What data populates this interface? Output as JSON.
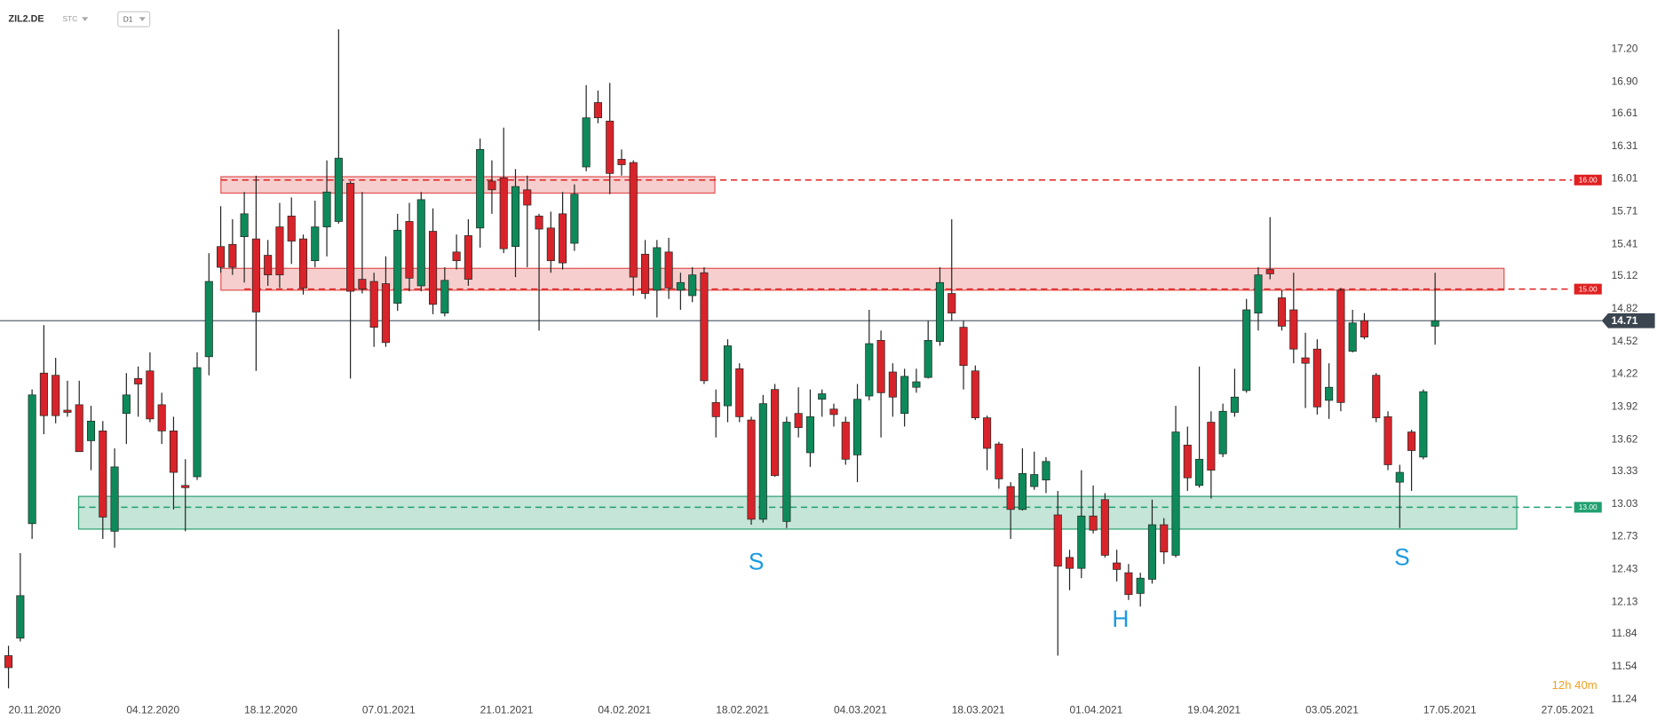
{
  "header": {
    "symbol": "ZIL2.DE",
    "instrument_type": "STC",
    "interval": "D1"
  },
  "chart_data": {
    "type": "candlestick",
    "up_color": "#0e8a5a",
    "down_color": "#d9232a",
    "ylim": [
      11.05,
      17.65
    ],
    "yticks": [
      {
        "value": 17.2,
        "label": "17.20"
      },
      {
        "value": 16.9,
        "label": "16.90"
      },
      16.61,
      16.31,
      16.01,
      15.71,
      15.41,
      15.12,
      14.82,
      14.52,
      14.22,
      13.92,
      13.62,
      13.33,
      13.03,
      12.73,
      12.43,
      12.13,
      11.84,
      11.54,
      11.24
    ],
    "xtick_labels": [
      "20.11.2020",
      "04.12.2020",
      "18.12.2020",
      "07.01.2021",
      "21.01.2021",
      "04.02.2021",
      "18.02.2021",
      "04.03.2021",
      "18.03.2021",
      "01.04.2021",
      "19.04.2021",
      "03.05.2021",
      "17.05.2021",
      "27.05.2021"
    ],
    "open": [
      11.64,
      11.8,
      12.85,
      14.23,
      14.21,
      13.89,
      13.94,
      13.61,
      13.7,
      12.78,
      13.86,
      14.18,
      14.25,
      13.94,
      13.7,
      13.2,
      13.28,
      14.38,
      15.39,
      15.41,
      15.48,
      15.46,
      15.31,
      15.57,
      15.67,
      15.46,
      15.26,
      15.57,
      15.62,
      15.97,
      15.09,
      15.07,
      15.05,
      14.87,
      15.62,
      15.03,
      15.53,
      14.78,
      15.34,
      15.49,
      15.56,
      15.99,
      16.02,
      15.39,
      15.91,
      15.67,
      15.56,
      15.69,
      15.42,
      16.12,
      16.71,
      16.54,
      16.19,
      16.16,
      15.32,
      14.99,
      15.34,
      14.99,
      14.94,
      15.15,
      13.96,
      13.93,
      14.27,
      13.8,
      12.89,
      14.08,
      12.87,
      13.86,
      13.5,
      13.99,
      13.9,
      13.78,
      13.48,
      14.02,
      14.53,
      14.24,
      13.86,
      14.1,
      14.19,
      14.52,
      14.96,
      14.65,
      14.25,
      13.82,
      13.58,
      13.19,
      12.98,
      13.19,
      13.25,
      12.93,
      12.54,
      12.44,
      12.92,
      13.07,
      12.49,
      12.4,
      12.21,
      12.34,
      12.84,
      12.56,
      13.57,
      13.2,
      13.78,
      13.49,
      13.87,
      14.07,
      14.78,
      15.18,
      14.92,
      14.81,
      14.37,
      14.45,
      13.98,
      14.99,
      14.43,
      14.71,
      14.21,
      13.83,
      13.23,
      13.69,
      13.46,
      14.66
    ],
    "high": [
      11.73,
      12.58,
      14.08,
      14.67,
      14.37,
      14.16,
      14.16,
      13.93,
      13.79,
      13.54,
      14.23,
      14.29,
      14.42,
      14.05,
      13.83,
      13.44,
      14.42,
      15.33,
      15.76,
      15.64,
      15.89,
      16.04,
      15.45,
      15.79,
      15.84,
      15.5,
      15.81,
      16.18,
      17.38,
      15.99,
      15.89,
      15.15,
      15.3,
      15.69,
      15.79,
      15.89,
      15.74,
      15.2,
      15.5,
      15.64,
      16.38,
      16.18,
      16.48,
      16.1,
      16.04,
      15.69,
      15.71,
      15.89,
      15.96,
      16.87,
      16.82,
      16.89,
      16.28,
      16.18,
      15.45,
      15.45,
      15.47,
      15.15,
      15.2,
      15.2,
      14.08,
      14.54,
      14.32,
      13.83,
      14.03,
      14.13,
      13.83,
      14.1,
      14.08,
      14.08,
      13.95,
      13.83,
      14.13,
      14.81,
      14.62,
      14.32,
      14.27,
      14.27,
      14.71,
      15.2,
      15.64,
      14.71,
      14.3,
      13.84,
      13.6,
      13.23,
      13.54,
      13.51,
      13.46,
      13.15,
      12.61,
      13.34,
      13.2,
      13.13,
      12.61,
      12.48,
      12.4,
      13.07,
      12.9,
      13.93,
      13.74,
      14.29,
      13.88,
      13.95,
      14.27,
      14.91,
      15.2,
      15.66,
      14.99,
      15.15,
      14.6,
      14.54,
      14.32,
      15.01,
      14.81,
      14.78,
      14.23,
      13.88,
      13.39,
      13.71,
      14.08,
      15.15
    ],
    "low": [
      11.34,
      11.77,
      12.71,
      13.67,
      13.77,
      13.83,
      13.51,
      13.34,
      12.71,
      12.63,
      13.58,
      13.83,
      13.78,
      13.58,
      12.98,
      12.78,
      13.25,
      14.21,
      15.15,
      15.13,
      15.06,
      14.25,
      15.03,
      15.01,
      15.23,
      14.95,
      15.2,
      15.3,
      15.6,
      14.18,
      14.96,
      14.47,
      14.47,
      14.8,
      14.98,
      14.98,
      14.77,
      14.75,
      15.18,
      15.03,
      15.38,
      15.69,
      15.33,
      15.11,
      15.2,
      14.62,
      15.15,
      15.18,
      15.35,
      16.08,
      16.52,
      15.87,
      16.04,
      14.94,
      14.91,
      14.74,
      14.91,
      14.81,
      14.88,
      14.13,
      13.64,
      13.78,
      13.78,
      12.84,
      12.86,
      13.28,
      12.81,
      13.64,
      13.37,
      13.83,
      13.74,
      13.39,
      13.23,
      13.98,
      13.64,
      13.83,
      13.74,
      14.05,
      14.18,
      14.48,
      14.71,
      14.08,
      13.8,
      13.34,
      13.17,
      12.71,
      12.97,
      13.16,
      13.13,
      11.64,
      12.24,
      12.35,
      12.76,
      12.54,
      12.32,
      12.15,
      12.09,
      12.3,
      12.48,
      12.54,
      13.15,
      13.18,
      13.08,
      13.46,
      13.83,
      14.05,
      14.62,
      15.09,
      14.62,
      14.32,
      13.91,
      13.85,
      13.81,
      13.88,
      14.42,
      14.54,
      13.78,
      13.34,
      12.81,
      13.15,
      13.44,
      14.49
    ],
    "close": [
      11.53,
      12.19,
      14.03,
      13.84,
      13.84,
      13.87,
      13.51,
      13.79,
      12.91,
      13.37,
      14.03,
      14.13,
      13.81,
      13.7,
      13.32,
      13.18,
      14.28,
      15.07,
      15.2,
      15.2,
      15.69,
      14.79,
      15.13,
      15.13,
      15.44,
      15.01,
      15.57,
      15.89,
      16.2,
      14.98,
      15.0,
      14.65,
      14.51,
      15.54,
      15.1,
      15.82,
      14.86,
      15.08,
      15.26,
      15.09,
      16.28,
      15.91,
      15.37,
      15.94,
      15.77,
      15.55,
      15.26,
      15.24,
      15.87,
      16.57,
      16.57,
      16.06,
      16.14,
      15.11,
      14.96,
      15.38,
      15.01,
      15.06,
      15.13,
      14.16,
      13.83,
      14.48,
      13.83,
      12.89,
      13.95,
      13.29,
      13.78,
      13.73,
      13.83,
      14.04,
      13.85,
      13.44,
      13.99,
      14.5,
      14.05,
      14.01,
      14.2,
      14.15,
      14.53,
      15.06,
      14.78,
      14.3,
      13.82,
      13.54,
      13.26,
      12.98,
      13.31,
      13.3,
      13.42,
      12.46,
      12.44,
      12.92,
      12.79,
      12.56,
      12.43,
      12.2,
      12.35,
      12.84,
      12.59,
      13.69,
      13.27,
      13.44,
      13.34,
      13.88,
      14.01,
      14.81,
      15.13,
      15.14,
      14.66,
      14.45,
      14.32,
      13.92,
      14.1,
      13.96,
      14.69,
      14.56,
      13.82,
      13.39,
      13.32,
      13.52,
      14.06,
      14.71
    ],
    "zones": [
      {
        "top": 16.03,
        "bottom": 15.88,
        "color": "#e05050"
      },
      {
        "top": 15.19,
        "bottom": 14.99,
        "color": "#e05050"
      },
      {
        "top": 13.1,
        "bottom": 12.8,
        "color": "#2aa070"
      }
    ],
    "levels": [
      {
        "value": 16.0,
        "label": "16.00",
        "color": "#e02020"
      },
      {
        "value": 15.0,
        "label": "15.00",
        "color": "#e02020"
      },
      {
        "value": 13.0,
        "label": "13.00",
        "color": "#20a070"
      }
    ],
    "last_price": 14.71,
    "annotations": [
      "S",
      "H",
      "S"
    ],
    "timer": "12h 40m"
  }
}
